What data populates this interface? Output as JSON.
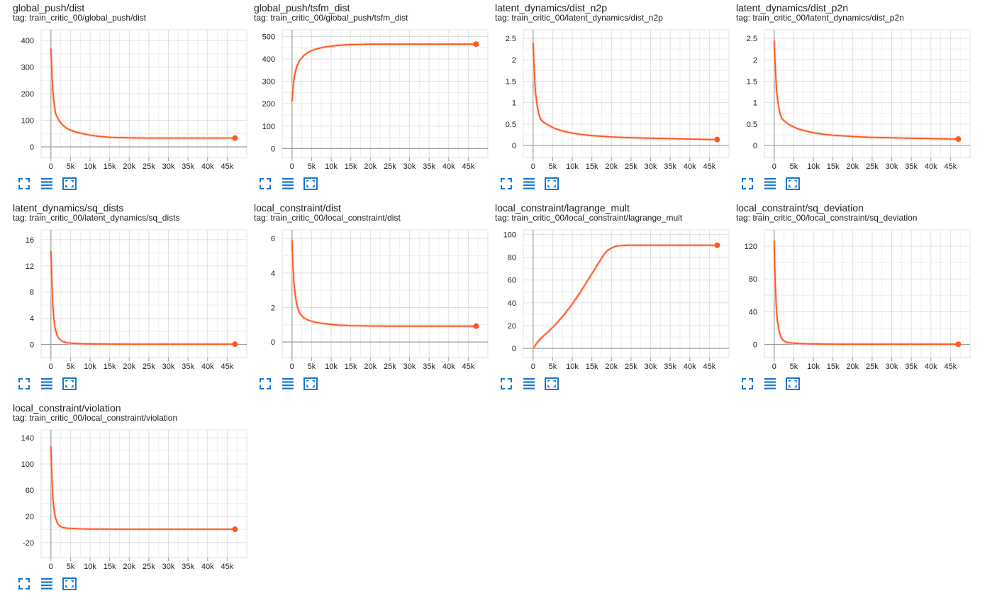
{
  "colors": {
    "series": "#ff5722",
    "smooth_raw": "#ffccbc",
    "grid": "#e0e0e0",
    "axis": "#9e9e9e",
    "button": "#1976d2"
  },
  "buttons": [
    "fullscreen-icon",
    "lines-icon",
    "fit-domain-icon"
  ],
  "chart_data": [
    {
      "type": "line",
      "title": "global_push/dist",
      "tag": "tag: train_critic_00/global_push/dist",
      "xticks": [
        "0",
        "5k",
        "10k",
        "15k",
        "20k",
        "25k",
        "30k",
        "35k",
        "40k",
        "45k"
      ],
      "yticks": [
        "0",
        "100",
        "200",
        "300",
        "400"
      ],
      "ytick_values": [
        0,
        100,
        200,
        300,
        400
      ],
      "xlim": [
        -2500,
        50000
      ],
      "ylim": [
        -40,
        440
      ],
      "series": [
        {
          "x": [
            0,
            300,
            700,
            1200,
            2000,
            3000,
            4000,
            5000,
            6000,
            8000,
            10000,
            12000,
            15000,
            20000,
            25000,
            30000,
            35000,
            40000,
            45000,
            47000
          ],
          "y": [
            370,
            250,
            175,
            125,
            100,
            82,
            70,
            63,
            57,
            50,
            44,
            40,
            36,
            34,
            33,
            33,
            33,
            33,
            33,
            33
          ]
        }
      ]
    },
    {
      "type": "line",
      "title": "global_push/tsfm_dist",
      "tag": "tag: train_critic_00/global_push/tsfm_dist",
      "xticks": [
        "0",
        "5k",
        "10k",
        "15k",
        "20k",
        "25k",
        "30k",
        "35k",
        "40k",
        "45k"
      ],
      "yticks": [
        "0",
        "100",
        "200",
        "300",
        "400",
        "500"
      ],
      "ytick_values": [
        0,
        100,
        200,
        300,
        400,
        500
      ],
      "xlim": [
        -2500,
        50000
      ],
      "ylim": [
        -40,
        530
      ],
      "series": [
        {
          "x": [
            0,
            300,
            700,
            1200,
            2000,
            3000,
            4000,
            5000,
            6000,
            8000,
            10000,
            12000,
            15000,
            20000,
            25000,
            30000,
            35000,
            40000,
            45000,
            47000
          ],
          "y": [
            210,
            285,
            330,
            365,
            395,
            415,
            428,
            437,
            444,
            452,
            457,
            461,
            464,
            466,
            466,
            466,
            466,
            466,
            466,
            466
          ]
        }
      ]
    },
    {
      "type": "line",
      "title": "latent_dynamics/dist_n2p",
      "tag": "tag: train_critic_00/latent_dynamics/dist_n2p",
      "xticks": [
        "0",
        "5k",
        "10k",
        "15k",
        "20k",
        "25k",
        "30k",
        "35k",
        "40k",
        "45k"
      ],
      "yticks": [
        "0",
        "0.5",
        "1",
        "1.5",
        "2",
        "2.5"
      ],
      "ytick_values": [
        0,
        0.5,
        1,
        1.5,
        2,
        2.5
      ],
      "xlim": [
        -2500,
        50000
      ],
      "ylim": [
        -0.28,
        2.7
      ],
      "series": [
        {
          "x": [
            0,
            300,
            600,
            1000,
            1500,
            2000,
            3000,
            4000,
            5000,
            6000,
            8000,
            10000,
            12000,
            15000,
            20000,
            25000,
            30000,
            35000,
            40000,
            45000,
            47000
          ],
          "y": [
            2.4,
            1.7,
            1.25,
            0.95,
            0.72,
            0.6,
            0.52,
            0.47,
            0.42,
            0.38,
            0.33,
            0.29,
            0.26,
            0.23,
            0.2,
            0.18,
            0.17,
            0.16,
            0.15,
            0.14,
            0.14
          ]
        }
      ]
    },
    {
      "type": "line",
      "title": "latent_dynamics/dist_p2n",
      "tag": "tag: train_critic_00/latent_dynamics/dist_p2n",
      "xticks": [
        "0",
        "5k",
        "10k",
        "15k",
        "20k",
        "25k",
        "30k",
        "35k",
        "40k",
        "45k"
      ],
      "yticks": [
        "0",
        "0.5",
        "1",
        "1.5",
        "2",
        "2.5"
      ],
      "ytick_values": [
        0,
        0.5,
        1,
        1.5,
        2,
        2.5
      ],
      "xlim": [
        -2500,
        50000
      ],
      "ylim": [
        -0.28,
        2.7
      ],
      "series": [
        {
          "x": [
            0,
            300,
            600,
            1000,
            1500,
            2000,
            3000,
            4000,
            5000,
            6000,
            8000,
            10000,
            12000,
            15000,
            20000,
            25000,
            30000,
            35000,
            40000,
            45000,
            47000
          ],
          "y": [
            2.45,
            1.75,
            1.28,
            0.97,
            0.74,
            0.62,
            0.54,
            0.48,
            0.43,
            0.39,
            0.34,
            0.3,
            0.27,
            0.24,
            0.21,
            0.19,
            0.18,
            0.17,
            0.16,
            0.15,
            0.15
          ]
        }
      ]
    },
    {
      "type": "line",
      "title": "latent_dynamics/sq_dists",
      "tag": "tag: train_critic_00/latent_dynamics/sq_dists",
      "xticks": [
        "0",
        "5k",
        "10k",
        "15k",
        "20k",
        "25k",
        "30k",
        "35k",
        "40k",
        "45k"
      ],
      "yticks": [
        "0",
        "4",
        "8",
        "12",
        "16"
      ],
      "ytick_values": [
        0,
        4,
        8,
        12,
        16
      ],
      "xlim": [
        -2500,
        50000
      ],
      "ylim": [
        -2,
        17.5
      ],
      "series": [
        {
          "x": [
            0,
            200,
            400,
            700,
            1000,
            1500,
            2000,
            3000,
            4000,
            6000,
            8000,
            10000,
            15000,
            20000,
            25000,
            30000,
            35000,
            40000,
            45000,
            47000
          ],
          "y": [
            14.3,
            10,
            6.8,
            4.2,
            2.7,
            1.5,
            0.9,
            0.45,
            0.28,
            0.15,
            0.1,
            0.08,
            0.06,
            0.05,
            0.05,
            0.05,
            0.05,
            0.05,
            0.05,
            0.05
          ]
        }
      ]
    },
    {
      "type": "line",
      "title": "local_constraint/dist",
      "tag": "tag: train_critic_00/local_constraint/dist",
      "xticks": [
        "0",
        "5k",
        "10k",
        "15k",
        "20k",
        "25k",
        "30k",
        "35k",
        "40k",
        "45k"
      ],
      "yticks": [
        "0",
        "2",
        "4",
        "6"
      ],
      "ytick_values": [
        0,
        2,
        4,
        6
      ],
      "xlim": [
        -2500,
        50000
      ],
      "ylim": [
        -0.9,
        6.5
      ],
      "series": [
        {
          "x": [
            0,
            200,
            500,
            900,
            1400,
            2000,
            3000,
            4000,
            5000,
            6000,
            8000,
            10000,
            12000,
            15000,
            20000,
            25000,
            30000,
            35000,
            40000,
            45000,
            47000
          ],
          "y": [
            5.9,
            4.5,
            3.4,
            2.6,
            2.0,
            1.65,
            1.4,
            1.28,
            1.2,
            1.14,
            1.07,
            1.02,
            0.98,
            0.95,
            0.93,
            0.92,
            0.92,
            0.92,
            0.92,
            0.92,
            0.92
          ]
        }
      ]
    },
    {
      "type": "line",
      "title": "local_constraint/lagrange_mult",
      "tag": "tag: train_critic_00/local_constraint/lagrange_mult",
      "xticks": [
        "0",
        "5k",
        "10k",
        "15k",
        "20k",
        "25k",
        "30k",
        "35k",
        "40k",
        "45k"
      ],
      "yticks": [
        "0",
        "20",
        "40",
        "60",
        "80",
        "100"
      ],
      "ytick_values": [
        0,
        20,
        40,
        60,
        80,
        100
      ],
      "xlim": [
        -2500,
        50000
      ],
      "ylim": [
        -8,
        104
      ],
      "series": [
        {
          "x": [
            0,
            1000,
            2000,
            4000,
            6000,
            8000,
            10000,
            12000,
            14000,
            16000,
            18000,
            19000,
            20000,
            21000,
            22000,
            24000,
            27000,
            30000,
            35000,
            40000,
            45000,
            47000
          ],
          "y": [
            0,
            5,
            9,
            15,
            22,
            30,
            39,
            49,
            60,
            71,
            82,
            86,
            88,
            89.5,
            90,
            90.5,
            90.5,
            90.5,
            90.5,
            90.5,
            90.5,
            90.5
          ]
        }
      ]
    },
    {
      "type": "line",
      "title": "local_constraint/sq_deviation",
      "tag": "tag: train_critic_00/local_constraint/sq_deviation",
      "xticks": [
        "0",
        "5k",
        "10k",
        "15k",
        "20k",
        "25k",
        "30k",
        "35k",
        "40k",
        "45k"
      ],
      "yticks": [
        "0",
        "40",
        "80",
        "120"
      ],
      "ytick_values": [
        0,
        40,
        80,
        120
      ],
      "xlim": [
        -2500,
        50000
      ],
      "ylim": [
        -16,
        140
      ],
      "series": [
        {
          "x": [
            0,
            150,
            300,
            500,
            800,
            1200,
            1700,
            2300,
            3000,
            4000,
            6000,
            8000,
            10000,
            15000,
            20000,
            25000,
            30000,
            35000,
            40000,
            45000,
            47000
          ],
          "y": [
            127,
            95,
            70,
            48,
            30,
            17,
            9,
            5,
            3,
            2,
            1.2,
            0.8,
            0.6,
            0.4,
            0.3,
            0.3,
            0.3,
            0.3,
            0.3,
            0.3,
            0.3
          ]
        }
      ]
    },
    {
      "type": "line",
      "title": "local_constraint/violation",
      "tag": "tag: train_critic_00/local_constraint/violation",
      "xticks": [
        "0",
        "5k",
        "10k",
        "15k",
        "20k",
        "25k",
        "30k",
        "35k",
        "40k",
        "45k"
      ],
      "yticks": [
        "-20",
        "20",
        "60",
        "100",
        "140"
      ],
      "ytick_values": [
        -20,
        20,
        60,
        100,
        140
      ],
      "xlim": [
        -2500,
        50000
      ],
      "ylim": [
        -43,
        152
      ],
      "series": [
        {
          "x": [
            0,
            150,
            300,
            500,
            800,
            1200,
            1700,
            2300,
            3000,
            4000,
            6000,
            8000,
            10000,
            15000,
            20000,
            25000,
            30000,
            35000,
            40000,
            45000,
            47000
          ],
          "y": [
            127,
            95,
            70,
            48,
            30,
            17,
            9,
            5,
            3,
            2,
            1.2,
            0.8,
            0.6,
            0.4,
            0.3,
            0.3,
            0.3,
            0.3,
            0.3,
            0.3,
            0.3
          ]
        }
      ]
    }
  ]
}
